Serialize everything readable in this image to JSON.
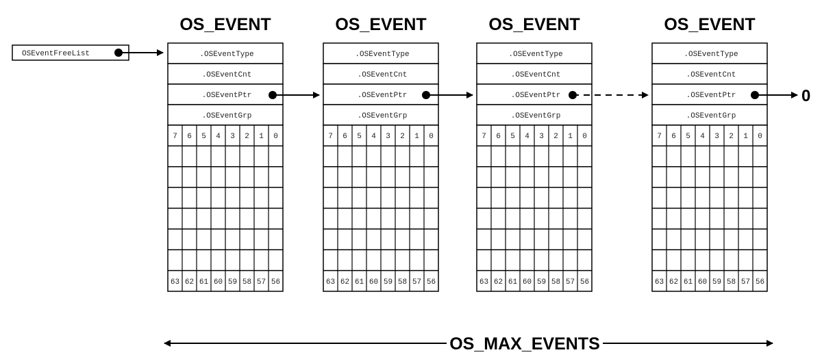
{
  "freelist_label": "OSEventFreeList",
  "events": [
    {
      "title": "OS_EVENT",
      "fields": [
        ".OSEventType",
        ".OSEventCnt",
        ".OSEventPtr",
        ".OSEventGrp"
      ]
    },
    {
      "title": "OS_EVENT",
      "fields": [
        ".OSEventType",
        ".OSEventCnt",
        ".OSEventPtr",
        ".OSEventGrp"
      ]
    },
    {
      "title": "OS_EVENT",
      "fields": [
        ".OSEventType",
        ".OSEventCnt",
        ".OSEventPtr",
        ".OSEventGrp"
      ]
    },
    {
      "title": "OS_EVENT",
      "fields": [
        ".OSEventType",
        ".OSEventCnt",
        ".OSEventPtr",
        ".OSEventGrp"
      ]
    }
  ],
  "top_bits": [
    "7",
    "6",
    "5",
    "4",
    "3",
    "2",
    "1",
    "0"
  ],
  "bottom_bits": [
    "63",
    "62",
    "61",
    "60",
    "59",
    "58",
    "57",
    "56"
  ],
  "null_terminator": "0",
  "max_events_label": "OS_MAX_EVENTS",
  "colors": {
    "stroke": "#000000",
    "text": "#222222"
  }
}
